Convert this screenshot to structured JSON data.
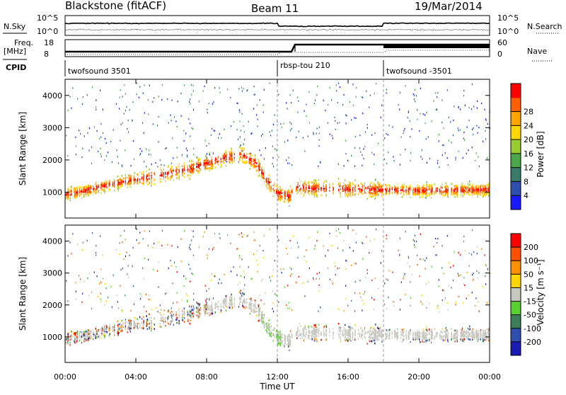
{
  "chart_data": {
    "type": "heatmap",
    "header": {
      "station": "Blackstone (fitACF)",
      "beam": "Beam 11",
      "date": "19/Mar/2014"
    },
    "noise_panel": {
      "left_label": "N.Sky",
      "right_label": "N.Search",
      "left_ticks": [
        "10^5",
        "10^0"
      ],
      "right_ticks": [
        "10^5",
        "10^0"
      ]
    },
    "freq_panel": {
      "left_label_line1": "Freq.",
      "left_label_line2": "[MHz]",
      "right_label": "Nave",
      "left_ticks": [
        "18",
        "8"
      ],
      "right_ticks": [
        "60",
        "0"
      ]
    },
    "cpid": {
      "label": "CPID",
      "segments": [
        {
          "start_hour": 0,
          "end_hour": 12,
          "name": "twofsound 3501"
        },
        {
          "start_hour": 12,
          "end_hour": 18,
          "name": "rbsp-tou 210"
        },
        {
          "start_hour": 18,
          "end_hour": 24,
          "name": "twofsound -3501"
        }
      ]
    },
    "x_axis": {
      "label": "Time UT",
      "range_hours": [
        0,
        24
      ],
      "ticks": [
        "00:00",
        "04:00",
        "08:00",
        "12:00",
        "16:00",
        "20:00",
        "00:00"
      ]
    },
    "power_panel": {
      "ylabel": "Slant Range [km]",
      "yticks": [
        1000,
        2000,
        3000,
        4000
      ],
      "ylim": [
        200,
        4500
      ],
      "colorbar_label": "Power [dB]",
      "colorbar_ticks": [
        "4",
        "8",
        "12",
        "16",
        "20",
        "24",
        "28"
      ]
    },
    "velocity_panel": {
      "ylabel": "Slant Range [km]",
      "yticks": [
        1000,
        2000,
        3000,
        4000
      ],
      "ylim": [
        200,
        4500
      ],
      "colorbar_label": "Velocity [m s⁻¹]",
      "colorbar_ticks": [
        "200",
        "100",
        "50",
        "15",
        "-15",
        "-50",
        "-100",
        "-200"
      ]
    },
    "scatter_band_center_km": [
      [
        0,
        950
      ],
      [
        1,
        1050
      ],
      [
        2,
        1200
      ],
      [
        3,
        1320
      ],
      [
        4,
        1430
      ],
      [
        5,
        1520
      ],
      [
        6,
        1620
      ],
      [
        7,
        1750
      ],
      [
        8,
        1920
      ],
      [
        9,
        2100
      ],
      [
        10,
        2200
      ],
      [
        10.8,
        1900
      ],
      [
        11.4,
        1400
      ],
      [
        12,
        1000
      ],
      [
        12.7,
        900
      ],
      [
        13,
        1200
      ],
      [
        14,
        1140
      ],
      [
        16,
        1120
      ],
      [
        18,
        1100
      ],
      [
        20,
        1080
      ],
      [
        22,
        1090
      ],
      [
        24,
        1100
      ]
    ],
    "colors": {
      "power": [
        "#1a1aff",
        "#2f4fae",
        "#3a7a6a",
        "#4aa84a",
        "#9acd32",
        "#ffd700",
        "#ffa500",
        "#ff6000",
        "#ff0000"
      ],
      "velocity": [
        "#1a1ab4",
        "#2f4fae",
        "#3c7d5a",
        "#5ad030",
        "#c8c8c0",
        "#ffd700",
        "#ff9000",
        "#ff5000",
        "#ff0000"
      ]
    }
  }
}
